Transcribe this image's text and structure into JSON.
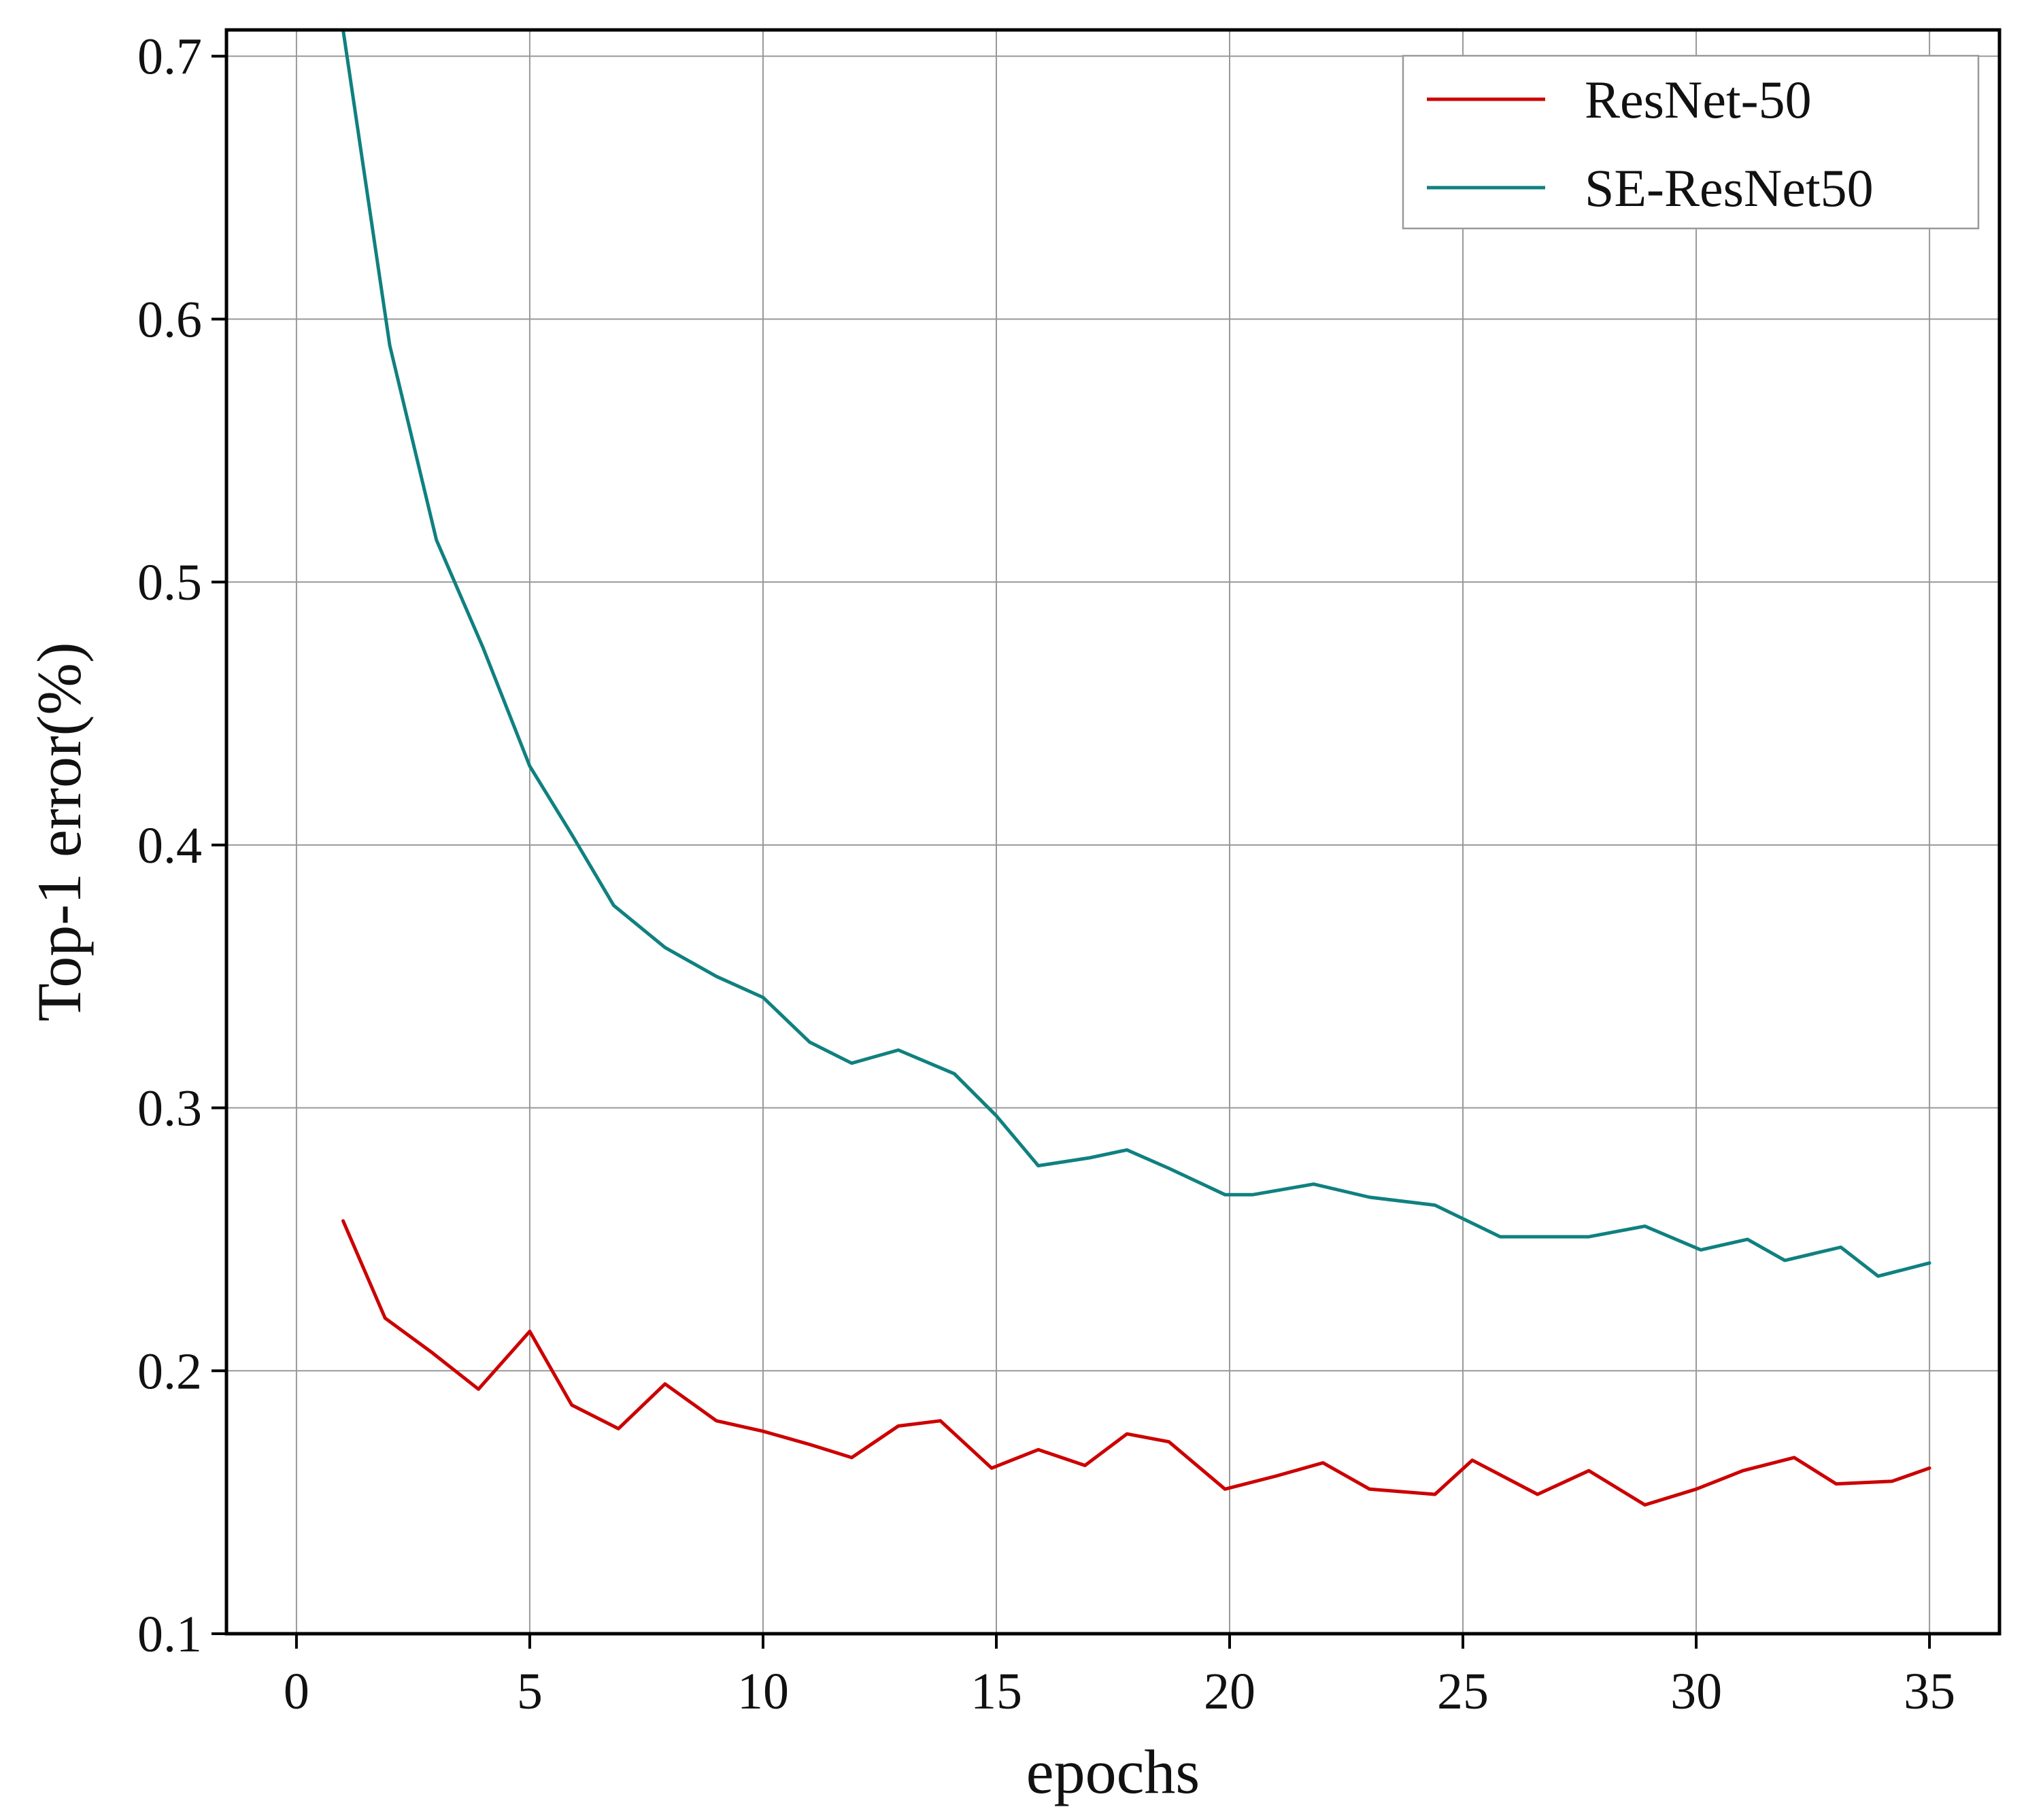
{
  "chart_data": {
    "type": "line",
    "title": "",
    "xlabel": "epochs",
    "ylabel": "Top-1 error(%)",
    "xlim": [
      -1.5,
      36.5
    ],
    "ylim": [
      0.1,
      0.71
    ],
    "xticks": [
      0,
      5,
      10,
      15,
      20,
      25,
      30,
      35
    ],
    "yticks": [
      0.1,
      0.2,
      0.3,
      0.4,
      0.5,
      0.6,
      0.7
    ],
    "xtick_labels": [
      "0",
      "5",
      "10",
      "15",
      "20",
      "25",
      "30",
      "35"
    ],
    "ytick_labels": [
      "0.1",
      "0.2",
      "0.3",
      "0.4",
      "0.5",
      "0.6",
      "0.7"
    ],
    "grid": true,
    "legend": "top-right",
    "series": [
      {
        "name": "ResNet-50",
        "color": "#cc0000",
        "x": [
          1,
          1.9,
          2.9,
          3.9,
          5,
          5.9,
          6.9,
          7.9,
          9,
          10,
          11,
          11.9,
          12.9,
          13.8,
          14.9,
          15.9,
          16.9,
          17.8,
          18.7,
          19.9,
          21,
          22,
          23,
          24.4,
          25.2,
          26.6,
          27.7,
          28.9,
          30,
          31,
          32.1,
          33,
          34.2,
          35
        ],
        "y": [
          0.257,
          0.22,
          0.207,
          0.193,
          0.215,
          0.187,
          0.178,
          0.195,
          0.181,
          0.177,
          0.172,
          0.167,
          0.179,
          0.181,
          0.163,
          0.17,
          0.164,
          0.176,
          0.173,
          0.155,
          0.16,
          0.165,
          0.155,
          0.153,
          0.166,
          0.153,
          0.162,
          0.149,
          0.155,
          0.162,
          0.167,
          0.157,
          0.158,
          0.163
        ]
      },
      {
        "name": "SE-ResNet50",
        "color": "#108080",
        "x": [
          1,
          2,
          3,
          4,
          5,
          5.9,
          6.8,
          7.9,
          9,
          10,
          11,
          11.9,
          12.9,
          14.1,
          15,
          15.9,
          17,
          17.8,
          18.7,
          19.9,
          20.5,
          21.8,
          23,
          24.4,
          25.8,
          27.7,
          28.9,
          30.1,
          31.1,
          31.9,
          33.1,
          33.9,
          35
        ],
        "y": [
          0.71,
          0.59,
          0.516,
          0.475,
          0.43,
          0.404,
          0.377,
          0.361,
          0.35,
          0.342,
          0.325,
          0.317,
          0.322,
          0.313,
          0.297,
          0.278,
          0.281,
          0.284,
          0.277,
          0.267,
          0.267,
          0.271,
          0.266,
          0.263,
          0.251,
          0.251,
          0.255,
          0.246,
          0.25,
          0.242,
          0.247,
          0.236,
          0.241
        ]
      }
    ]
  }
}
